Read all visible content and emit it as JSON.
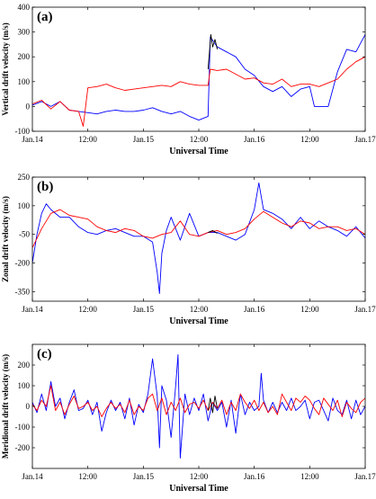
{
  "colors": {
    "series_1": "#0000ff",
    "series_2": "#ff0000",
    "series_3": "#000000"
  },
  "chart_data": [
    {
      "type": "line",
      "panel_label": "(a)",
      "xlabel": "Universal Time",
      "ylabel": "Vertical drift velocity (m/s)",
      "x_unit": "hours since Jan.14 00:00 UT",
      "xlim": [
        0,
        72
      ],
      "ylim": [
        -100,
        400
      ],
      "yticks": [
        -100,
        0,
        100,
        200,
        300,
        400
      ],
      "xticks": [
        {
          "x": 0,
          "label": "Jan.14"
        },
        {
          "x": 12,
          "label": "12:00"
        },
        {
          "x": 24,
          "label": "Jan.15"
        },
        {
          "x": 36,
          "label": "12:00"
        },
        {
          "x": 48,
          "label": "Jan.16"
        },
        {
          "x": 60,
          "label": "12:00"
        },
        {
          "x": 72,
          "label": "Jan.17"
        }
      ],
      "series": [
        {
          "color": "#0000ff",
          "x": [
            0,
            2,
            4,
            6,
            8,
            10,
            12,
            14,
            16,
            18,
            20,
            22,
            24,
            26,
            28,
            30,
            32,
            34,
            36,
            38,
            38.5,
            40,
            42,
            44,
            46,
            48,
            50,
            52,
            54,
            56,
            58,
            60,
            61,
            62,
            63,
            64,
            66,
            68,
            70,
            72
          ],
          "y": [
            5,
            20,
            0,
            20,
            -15,
            -20,
            -25,
            -30,
            -20,
            -15,
            -20,
            -20,
            -15,
            -5,
            -20,
            -30,
            -20,
            -40,
            -55,
            -40,
            280,
            240,
            220,
            200,
            150,
            125,
            80,
            60,
            80,
            40,
            70,
            80,
            0,
            0,
            0,
            0,
            140,
            230,
            220,
            290
          ]
        },
        {
          "color": "#ff0000",
          "x": [
            0,
            2,
            4,
            6,
            8,
            10,
            11,
            12,
            14,
            16,
            18,
            20,
            22,
            24,
            26,
            28,
            30,
            32,
            34,
            36,
            38,
            38.5,
            40,
            42,
            44,
            46,
            48,
            50,
            52,
            54,
            56,
            58,
            60,
            62,
            64,
            66,
            68,
            70,
            72
          ],
          "y": [
            10,
            25,
            -10,
            20,
            -15,
            -20,
            -80,
            75,
            80,
            90,
            75,
            65,
            70,
            75,
            80,
            85,
            80,
            100,
            90,
            85,
            85,
            150,
            145,
            150,
            130,
            110,
            115,
            95,
            90,
            110,
            80,
            90,
            90,
            80,
            95,
            110,
            150,
            180,
            200
          ]
        },
        {
          "color": "#000000",
          "x": [
            38,
            38.6,
            39,
            39.5,
            40
          ],
          "y": [
            150,
            290,
            240,
            270,
            230
          ]
        }
      ]
    },
    {
      "type": "line",
      "panel_label": "(b)",
      "xlabel": "Universal Time",
      "ylabel": "Zonal drift velocity (m/s)",
      "x_unit": "hours since Jan.14 00:00 UT",
      "xlim": [
        0,
        72
      ],
      "ylim": [
        -400,
        250
      ],
      "yticks": [
        -350,
        -200,
        -50,
        100,
        250
      ],
      "xticks": [
        {
          "x": 0,
          "label": "Jan.14"
        },
        {
          "x": 12,
          "label": "12:00"
        },
        {
          "x": 24,
          "label": "Jan.15"
        },
        {
          "x": 36,
          "label": "12:00"
        },
        {
          "x": 48,
          "label": "Jan.16"
        },
        {
          "x": 60,
          "label": "12:00"
        },
        {
          "x": 72,
          "label": "Jan.17"
        }
      ],
      "series": [
        {
          "color": "#0000ff",
          "x": [
            0,
            1,
            2,
            3,
            4,
            6,
            8,
            10,
            12,
            14,
            16,
            18,
            20,
            22,
            24,
            26,
            27,
            27.5,
            28,
            29,
            30,
            32,
            34,
            36,
            38,
            40,
            42,
            44,
            46,
            48,
            49,
            50,
            52,
            54,
            56,
            58,
            60,
            62,
            64,
            66,
            68,
            70,
            72
          ],
          "y": [
            -200,
            -50,
            60,
            110,
            80,
            40,
            40,
            -10,
            -40,
            -50,
            -30,
            -20,
            -40,
            -60,
            -60,
            -90,
            -250,
            -360,
            -150,
            -30,
            40,
            -80,
            60,
            -60,
            -40,
            -40,
            -60,
            -80,
            -50,
            80,
            220,
            80,
            60,
            30,
            -20,
            40,
            -20,
            20,
            -10,
            -30,
            -60,
            -10,
            -70
          ]
        },
        {
          "color": "#ff0000",
          "x": [
            0,
            2,
            4,
            6,
            8,
            10,
            12,
            14,
            16,
            18,
            20,
            22,
            24,
            26,
            28,
            30,
            32,
            34,
            36,
            38,
            40,
            42,
            44,
            46,
            48,
            50,
            52,
            54,
            56,
            58,
            60,
            62,
            64,
            66,
            68,
            70,
            72
          ],
          "y": [
            -120,
            -20,
            60,
            80,
            50,
            40,
            30,
            -10,
            -30,
            -40,
            -20,
            -30,
            -60,
            -70,
            -50,
            -40,
            20,
            -50,
            -60,
            -40,
            -30,
            -50,
            -40,
            -20,
            30,
            70,
            40,
            10,
            -10,
            20,
            10,
            -20,
            -10,
            -10,
            -30,
            -20,
            -50
          ]
        },
        {
          "color": "#000000",
          "x": [
            38,
            39,
            40
          ],
          "y": [
            -40,
            -30,
            -45
          ]
        }
      ]
    },
    {
      "type": "line",
      "panel_label": "(c)",
      "xlabel": "Universal Time",
      "ylabel": "Meridional drift velocity (m/s)",
      "x_unit": "hours since Jan.14 00:00 UT",
      "xlim": [
        0,
        72
      ],
      "ylim": [
        -300,
        300
      ],
      "yticks": [
        -200,
        -100,
        0,
        100,
        200
      ],
      "xticks": [
        {
          "x": 0,
          "label": "Jan.14"
        },
        {
          "x": 12,
          "label": "12:00"
        },
        {
          "x": 24,
          "label": "Jan.15"
        },
        {
          "x": 36,
          "label": "12:00"
        },
        {
          "x": 48,
          "label": "Jan.16"
        },
        {
          "x": 60,
          "label": "12:00"
        },
        {
          "x": 72,
          "label": "Jan.17"
        }
      ],
      "series": [
        {
          "color": "#0000ff",
          "x": [
            0,
            1,
            2,
            3,
            4,
            5,
            6,
            7,
            8,
            9,
            10,
            11,
            12,
            13,
            14,
            15,
            16,
            17,
            18,
            19,
            20,
            21,
            22,
            23,
            24,
            25,
            26,
            27,
            27.5,
            28,
            29,
            30,
            31,
            31.5,
            32,
            33,
            34,
            35,
            36,
            37,
            38,
            39,
            40,
            41,
            42,
            43,
            44,
            45,
            46,
            47,
            48,
            49,
            49.5,
            50,
            51,
            52,
            53,
            54,
            55,
            56,
            57,
            58,
            59,
            60,
            61,
            62,
            63,
            64,
            65,
            66,
            67,
            68,
            69,
            70,
            71,
            72
          ],
          "y": [
            20,
            -30,
            60,
            -20,
            120,
            0,
            40,
            -60,
            20,
            80,
            -20,
            -10,
            30,
            -40,
            20,
            -120,
            -30,
            30,
            -20,
            20,
            -60,
            40,
            -90,
            10,
            -30,
            60,
            230,
            50,
            -200,
            100,
            30,
            -150,
            100,
            250,
            -250,
            60,
            -40,
            40,
            -20,
            60,
            -70,
            20,
            -20,
            20,
            -100,
            30,
            -130,
            60,
            -40,
            20,
            -20,
            0,
            160,
            30,
            -30,
            20,
            -30,
            20,
            -20,
            40,
            -20,
            0,
            30,
            -60,
            20,
            30,
            -20,
            -70,
            40,
            -20,
            -40,
            30,
            -60,
            30,
            -40,
            0
          ]
        },
        {
          "color": "#ff0000",
          "x": [
            0,
            1,
            2,
            3,
            4,
            5,
            6,
            7,
            8,
            9,
            10,
            11,
            12,
            13,
            14,
            15,
            16,
            17,
            18,
            19,
            20,
            21,
            22,
            23,
            24,
            25,
            26,
            27,
            28,
            29,
            30,
            31,
            32,
            33,
            34,
            35,
            36,
            37,
            38,
            39,
            40,
            41,
            42,
            43,
            44,
            45,
            46,
            47,
            48,
            49,
            50,
            51,
            52,
            53,
            54,
            55,
            56,
            57,
            58,
            59,
            60,
            61,
            62,
            63,
            64,
            65,
            66,
            67,
            68,
            69,
            70,
            71,
            72
          ],
          "y": [
            10,
            -20,
            30,
            0,
            100,
            -20,
            20,
            -40,
            10,
            50,
            -10,
            0,
            20,
            -20,
            0,
            -50,
            -10,
            20,
            -10,
            10,
            -30,
            30,
            -40,
            0,
            -20,
            40,
            60,
            -20,
            40,
            -40,
            20,
            -20,
            40,
            -30,
            10,
            20,
            -10,
            30,
            -20,
            20,
            -10,
            30,
            -40,
            20,
            -20,
            60,
            20,
            -10,
            30,
            -20,
            20,
            -30,
            0,
            -40,
            60,
            20,
            -20,
            40,
            20,
            50,
            30,
            -10,
            -40,
            40,
            10,
            -20,
            30,
            -50,
            20,
            -10,
            -30,
            20,
            40
          ]
        },
        {
          "color": "#000000",
          "x": [
            38,
            38.5,
            39,
            39.5,
            40
          ],
          "y": [
            -20,
            40,
            -30,
            50,
            -10
          ]
        }
      ]
    }
  ]
}
